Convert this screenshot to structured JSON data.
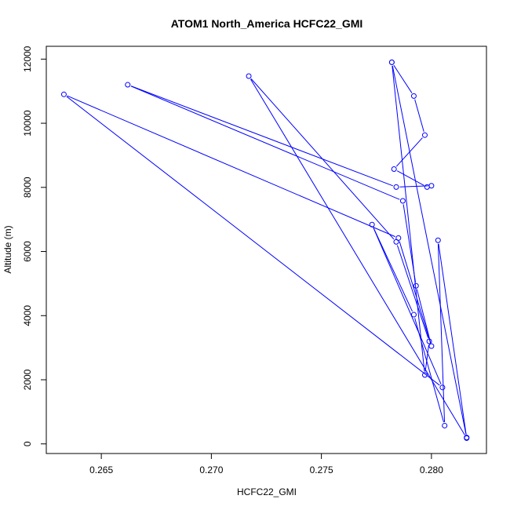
{
  "chart_data": {
    "type": "line",
    "title": "ATOM1 North_America HCFC22_GMI",
    "xlabel": "HCFC22_GMI",
    "ylabel": "Altitude (m)",
    "xlim": [
      0.2625,
      0.2825
    ],
    "ylim": [
      -300,
      12400
    ],
    "x_ticks": [
      0.265,
      0.27,
      0.275,
      0.28
    ],
    "x_tick_labels": [
      "0.265",
      "0.270",
      "0.275",
      "0.280"
    ],
    "y_ticks": [
      0,
      2000,
      4000,
      6000,
      8000,
      10000,
      12000
    ],
    "y_tick_labels": [
      "0",
      "2000",
      "4000",
      "6000",
      "8000",
      "10000",
      "12000"
    ],
    "grid": false,
    "legend": "none",
    "series_color": "#0000ff",
    "markers": "open-circle",
    "points": [
      {
        "x": 0.2816,
        "y": 200
      },
      {
        "x": 0.2782,
        "y": 11900
      },
      {
        "x": 0.2797,
        "y": 2150
      },
      {
        "x": 0.2799,
        "y": 3200
      },
      {
        "x": 0.2784,
        "y": 6300
      },
      {
        "x": 0.2717,
        "y": 11470
      },
      {
        "x": 0.2816,
        "y": 180
      },
      {
        "x": 0.2803,
        "y": 6350
      },
      {
        "x": 0.2806,
        "y": 570
      },
      {
        "x": 0.2792,
        "y": 4030
      },
      {
        "x": 0.2773,
        "y": 6840
      },
      {
        "x": 0.2805,
        "y": 1760
      },
      {
        "x": 0.2633,
        "y": 10900
      },
      {
        "x": 0.2785,
        "y": 6420
      },
      {
        "x": 0.28,
        "y": 3050
      },
      {
        "x": 0.2793,
        "y": 4930
      },
      {
        "x": 0.2787,
        "y": 7580
      },
      {
        "x": 0.2662,
        "y": 11200
      },
      {
        "x": 0.2784,
        "y": 8010
      },
      {
        "x": 0.28,
        "y": 8050
      },
      {
        "x": 0.2798,
        "y": 8010
      },
      {
        "x": 0.2783,
        "y": 8570
      },
      {
        "x": 0.2797,
        "y": 9630
      },
      {
        "x": 0.2792,
        "y": 10850
      },
      {
        "x": 0.2782,
        "y": 11900
      }
    ]
  }
}
